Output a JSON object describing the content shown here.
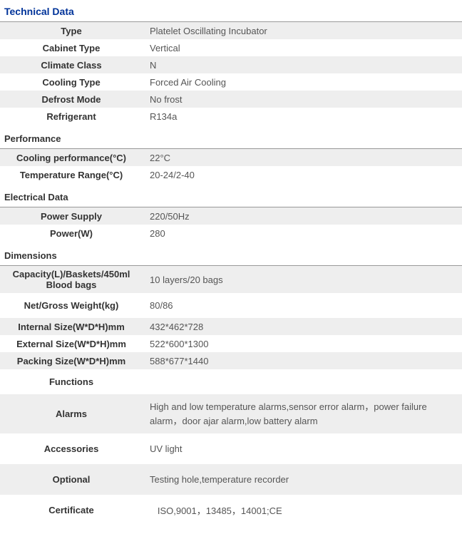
{
  "colors": {
    "header_text": "#003399",
    "border": "#999999",
    "alt_row_bg": "#eeeeee",
    "plain_row_bg": "#ffffff",
    "label_text": "#333333",
    "value_text": "#555555"
  },
  "sections": {
    "technical_data": {
      "title": "Technical Data",
      "rows": {
        "type": {
          "label": "Type",
          "value": "Platelet Oscillating  Incubator"
        },
        "cabinet_type": {
          "label": "Cabinet Type",
          "value": "Vertical"
        },
        "climate_class": {
          "label": "Climate Class",
          "value": "N"
        },
        "cooling_type": {
          "label": "Cooling Type",
          "value": "Forced Air Cooling"
        },
        "defrost_mode": {
          "label": "Defrost Mode",
          "value": "No frost"
        },
        "refrigerant": {
          "label": "Refrigerant",
          "value": "R134a"
        }
      }
    },
    "performance": {
      "title": "Performance",
      "rows": {
        "cooling_perf": {
          "label": "Cooling performance(°C)",
          "value": "22°C"
        },
        "temp_range": {
          "label": "Temperature Range(°C)",
          "value": "20-24/2-40"
        }
      }
    },
    "electrical": {
      "title": "Electrical Data",
      "rows": {
        "power_supply": {
          "label": "Power Supply",
          "value": "220/50Hz"
        },
        "power_w": {
          "label": "Power(W)",
          "value": "280"
        }
      }
    },
    "dimensions": {
      "title": "Dimensions",
      "rows": {
        "capacity": {
          "label": "Capacity(L)/Baskets/450ml Blood bags",
          "value": "10 layers/20 bags"
        },
        "weight": {
          "label": "Net/Gross Weight(kg)",
          "value": "80/86"
        },
        "internal_size": {
          "label": "Internal Size(W*D*H)mm",
          "value": "432*462*728"
        },
        "external_size": {
          "label": "External Size(W*D*H)mm",
          "value": "522*600*1300"
        },
        "packing_size": {
          "label": "Packing Size(W*D*H)mm",
          "value": "588*677*1440"
        },
        "functions": {
          "label": "Functions",
          "value": ""
        },
        "alarms": {
          "label": "Alarms",
          "value": "High and low temperature alarms,sensor error alarm，power failure alarm，door ajar alarm,low battery alarm"
        },
        "accessories": {
          "label": "Accessories",
          "value": "UV light"
        },
        "optional": {
          "label": "Optional",
          "value": "Testing hole,temperature recorder"
        },
        "certificate": {
          "label": "Certificate",
          "value": "   ISO,9001，13485，14001;CE"
        }
      }
    }
  }
}
